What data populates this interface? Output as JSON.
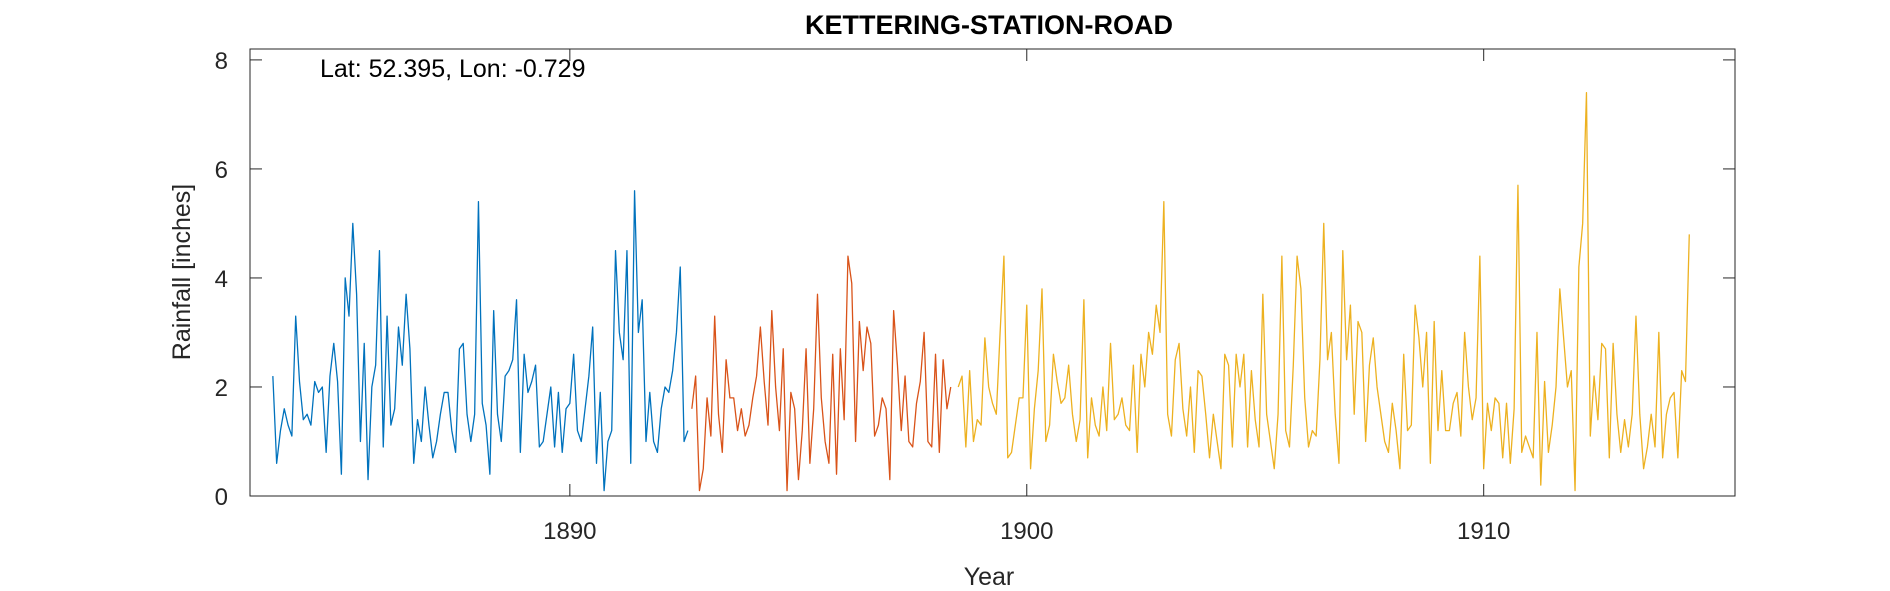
{
  "chart_data": {
    "type": "line",
    "title": "KETTERING-STATION-ROAD",
    "annotation": "Lat: 52.395, Lon: -0.729",
    "xlabel": "Year",
    "ylabel": "Rainfall [inches]",
    "xlim": [
      1883.0,
      1915.5
    ],
    "ylim": [
      0,
      8.2
    ],
    "xticks": [
      1890,
      1900,
      1910
    ],
    "yticks": [
      0,
      2,
      4,
      6,
      8
    ],
    "grid": false,
    "series": [
      {
        "color": "#0072BD",
        "x_start": 1883.5,
        "x_step": 0.08333,
        "values": [
          2.2,
          0.6,
          1.2,
          1.6,
          1.3,
          1.1,
          3.3,
          2.1,
          1.4,
          1.5,
          1.3,
          2.1,
          1.9,
          2.0,
          0.8,
          2.2,
          2.8,
          2.1,
          0.4,
          4.0,
          3.3,
          5.0,
          3.7,
          1.0,
          2.8,
          0.3,
          2.0,
          2.4,
          4.5,
          0.9,
          3.3,
          1.3,
          1.6,
          3.1,
          2.4,
          3.7,
          2.7,
          0.6,
          1.4,
          1.0,
          2.0,
          1.3,
          0.7,
          1.0,
          1.5,
          1.9,
          1.9,
          1.2,
          0.8,
          2.7,
          2.8,
          1.5,
          1.0,
          1.5,
          5.4,
          1.7,
          1.3,
          0.4,
          3.4,
          1.5,
          1.0,
          2.2,
          2.3,
          2.5,
          3.6,
          0.8,
          2.6,
          1.9,
          2.1,
          2.4,
          0.9,
          1.0,
          1.5,
          2.0,
          0.9,
          1.9,
          0.8,
          1.6,
          1.7,
          2.6,
          1.2,
          1.0,
          1.6,
          2.2,
          3.1,
          0.6,
          1.9,
          0.1,
          1.0,
          1.2,
          4.5,
          3.0,
          2.5,
          4.5,
          0.6,
          5.6,
          3.0,
          3.6,
          1.0,
          1.9,
          1.0,
          0.8,
          1.6,
          2.0,
          1.9,
          2.3,
          3.0,
          4.2,
          1.0,
          1.2
        ]
      },
      {
        "color": "#D95319",
        "x_start": 1892.67,
        "x_step": 0.08333,
        "values": [
          1.6,
          2.2,
          0.1,
          0.5,
          1.8,
          1.1,
          3.3,
          1.5,
          0.8,
          2.5,
          1.8,
          1.8,
          1.2,
          1.6,
          1.1,
          1.3,
          1.8,
          2.2,
          3.1,
          2.1,
          1.3,
          3.4,
          2.0,
          1.2,
          2.7,
          0.1,
          1.9,
          1.6,
          0.3,
          1.2,
          2.7,
          0.6,
          1.6,
          3.7,
          1.8,
          1.0,
          0.6,
          2.6,
          0.4,
          2.7,
          1.4,
          4.4,
          3.9,
          1.0,
          3.2,
          2.3,
          3.1,
          2.8,
          1.1,
          1.3,
          1.8,
          1.6,
          0.3,
          3.4,
          2.4,
          1.2,
          2.2,
          1.0,
          0.9,
          1.7,
          2.1,
          3.0,
          1.0,
          0.9,
          2.6,
          0.8,
          2.5,
          1.6,
          2.0
        ]
      },
      {
        "color": "#EDB120",
        "x_start": 1898.5,
        "x_step": 0.08333,
        "values": [
          2.0,
          2.2,
          0.9,
          2.3,
          1.0,
          1.4,
          1.3,
          2.9,
          2.0,
          1.7,
          1.5,
          3.0,
          4.4,
          0.7,
          0.8,
          1.3,
          1.8,
          1.8,
          3.5,
          0.5,
          1.6,
          2.3,
          3.8,
          1.0,
          1.3,
          2.6,
          2.1,
          1.7,
          1.8,
          2.4,
          1.5,
          1.0,
          1.4,
          3.6,
          0.7,
          1.8,
          1.3,
          1.1,
          2.0,
          1.2,
          2.8,
          1.4,
          1.5,
          1.8,
          1.3,
          1.2,
          2.4,
          0.8,
          2.6,
          2.0,
          3.0,
          2.6,
          3.5,
          3.0,
          5.4,
          1.5,
          1.1,
          2.5,
          2.8,
          1.6,
          1.1,
          2.0,
          0.8,
          2.3,
          2.2,
          1.5,
          0.7,
          1.5,
          1.0,
          0.5,
          2.6,
          2.4,
          0.9,
          2.6,
          2.0,
          2.6,
          0.9,
          2.3,
          1.4,
          0.9,
          3.7,
          1.5,
          1.0,
          0.5,
          1.5,
          4.4,
          1.2,
          0.9,
          2.4,
          4.4,
          3.8,
          1.8,
          0.9,
          1.2,
          1.1,
          2.5,
          5.0,
          2.5,
          3.0,
          1.5,
          0.6,
          4.5,
          2.5,
          3.5,
          1.5,
          3.2,
          3.0,
          1.0,
          2.4,
          2.9,
          2.0,
          1.5,
          1.0,
          0.8,
          1.7,
          1.2,
          0.5,
          2.6,
          1.2,
          1.3,
          3.5,
          2.9,
          2.0,
          3.0,
          0.6,
          3.2,
          1.2,
          2.3,
          1.2,
          1.2,
          1.7,
          1.9,
          1.1,
          3.0,
          2.0,
          1.4,
          1.8,
          4.4,
          0.5,
          1.7,
          1.2,
          1.8,
          1.7,
          0.7,
          1.7,
          0.6,
          1.6,
          5.7,
          0.8,
          1.1,
          0.9,
          0.7,
          3.0,
          0.2,
          2.1,
          0.8,
          1.3,
          2.0,
          3.8,
          2.9,
          2.0,
          2.3,
          0.1,
          4.2,
          5.0,
          7.4,
          1.1,
          2.2,
          1.4,
          2.8,
          2.7,
          0.7,
          2.8,
          1.5,
          0.8,
          1.4,
          0.9,
          1.5,
          3.3,
          1.5,
          0.5,
          0.9,
          1.5,
          0.9,
          3.0,
          0.7,
          1.5,
          1.8,
          1.9,
          0.7,
          2.3,
          2.1,
          4.8
        ]
      }
    ]
  }
}
